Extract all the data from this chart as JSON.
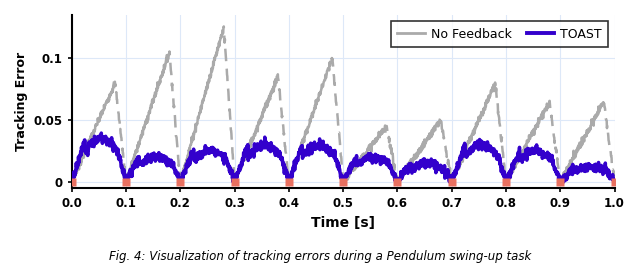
{
  "title": "",
  "xlabel": "Time [s]",
  "ylabel": "Tracking Error",
  "xlim": [
    0,
    1.0
  ],
  "ylim": [
    -0.005,
    0.135
  ],
  "yticks": [
    0,
    0.05,
    0.1
  ],
  "xticks": [
    0,
    0.1,
    0.2,
    0.3,
    0.4,
    0.5,
    0.6,
    0.7,
    0.8,
    0.9,
    1.0
  ],
  "caption": "Fig. 4: Visualization of tracking errors during a Pendulum swing-up task",
  "no_feedback_color": "#aaaaaa",
  "toast_color": "#3300cc",
  "marker_color": "#e87060",
  "background_color": "#ffffff",
  "grid_color": "#dde8f8",
  "no_fb_peak_heights": [
    0.08,
    0.105,
    0.125,
    0.085,
    0.1,
    0.045,
    0.05,
    0.08,
    0.065,
    0.065
  ],
  "toast_peaks": [
    0.035,
    0.02,
    0.025,
    0.03,
    0.03,
    0.02,
    0.015,
    0.03,
    0.025,
    0.012
  ],
  "reset_times": [
    0,
    0.1,
    0.2,
    0.3,
    0.4,
    0.5,
    0.6,
    0.7,
    0.8,
    0.9,
    1.0
  ]
}
